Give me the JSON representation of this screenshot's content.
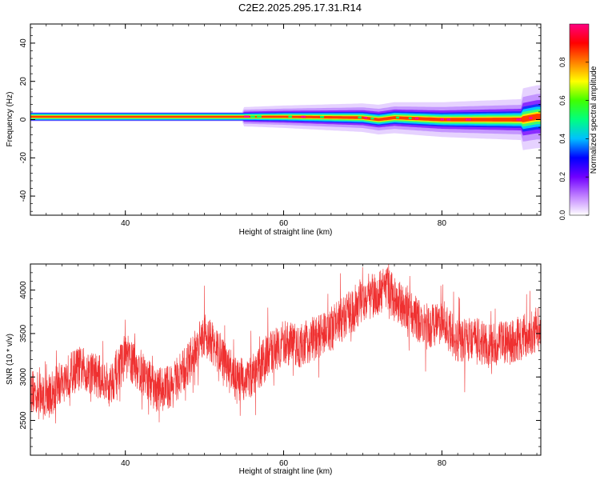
{
  "title": "C2E2.2025.295.17.31.R14",
  "chart_data": [
    {
      "type": "heatmap",
      "title": "",
      "xlabel": "Height of straight line (km)",
      "ylabel": "Frequency (Hz)",
      "xlim": [
        28,
        92.5
      ],
      "ylim": [
        -50,
        50
      ],
      "xticks": [
        40,
        60,
        80
      ],
      "yticks": [
        -40,
        -20,
        0,
        20,
        40
      ],
      "ridge_frequency": [
        {
          "x": 28,
          "y": 1.5
        },
        {
          "x": 40,
          "y": 1.5
        },
        {
          "x": 50,
          "y": 1.5
        },
        {
          "x": 60,
          "y": 1.5
        },
        {
          "x": 70,
          "y": 1.0
        },
        {
          "x": 72,
          "y": 0.0
        },
        {
          "x": 74,
          "y": 1.0
        },
        {
          "x": 80,
          "y": 0.0
        },
        {
          "x": 85,
          "y": 0.0
        },
        {
          "x": 90,
          "y": 0.0
        },
        {
          "x": 92,
          "y": 1.5
        }
      ],
      "colorbar": {
        "label": "Normalized spectral amplitude",
        "range": [
          0,
          1
        ],
        "ticks": [
          "0.0",
          "0.2",
          "0.4",
          "0.6",
          "0.8"
        ],
        "colors": [
          "#ffffff",
          "#c080ff",
          "#7000ff",
          "#0000ff",
          "#00c0ff",
          "#00ff80",
          "#40ff00",
          "#ffff00",
          "#ff8000",
          "#ff0000",
          "#ff0080"
        ]
      }
    },
    {
      "type": "line",
      "title": "",
      "xlabel": "Height of straight line (km)",
      "ylabel": "SNR (10 * v/v)",
      "xlim": [
        28,
        92.5
      ],
      "ylim": [
        2100,
        4300
      ],
      "xticks": [
        40,
        60,
        80
      ],
      "yticks": [
        2500,
        3000,
        3500,
        4000
      ],
      "color": "#ef3030",
      "series": [
        {
          "x": [
            28,
            30,
            32,
            34,
            36,
            38,
            40,
            42,
            44,
            46,
            48,
            50,
            52,
            54,
            56,
            58,
            60,
            62,
            64,
            66,
            68,
            70,
            72,
            73,
            74,
            76,
            78,
            80,
            82,
            84,
            86,
            88,
            90,
            92
          ],
          "values": [
            2850,
            2750,
            2950,
            3100,
            3050,
            2900,
            3250,
            3050,
            2850,
            2900,
            3150,
            3500,
            3250,
            2950,
            3000,
            3250,
            3400,
            3350,
            3450,
            3550,
            3700,
            3900,
            3950,
            4050,
            3900,
            3750,
            3550,
            3650,
            3400,
            3450,
            3350,
            3400,
            3450,
            3550
          ]
        }
      ]
    }
  ]
}
